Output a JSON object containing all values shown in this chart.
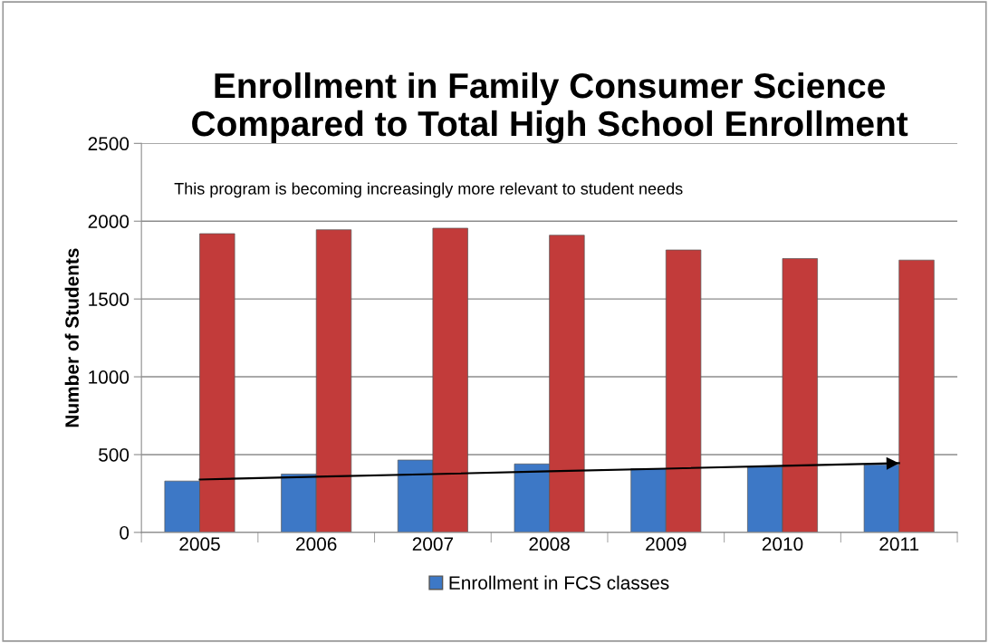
{
  "chart_data": {
    "type": "bar",
    "title": "Enrollment in Family Consumer Science\nCompared to Total High School Enrollment",
    "ylabel": "Number of Students",
    "categories": [
      "2005",
      "2006",
      "2007",
      "2008",
      "2009",
      "2010",
      "2011"
    ],
    "series": [
      {
        "name": "Enrollment in FCS classes",
        "color": "#3d78c6",
        "values": [
          330,
          375,
          465,
          440,
          410,
          420,
          435
        ]
      },
      {
        "color": "#c23b3a",
        "values": [
          1920,
          1945,
          1955,
          1910,
          1815,
          1760,
          1750
        ]
      },
      {
        "type": "line",
        "color": "#000000",
        "values": [
          340,
          358,
          375,
          393,
          410,
          428,
          445
        ]
      }
    ],
    "ylim": [
      0,
      2500
    ],
    "yticks": [
      0,
      500,
      1000,
      1500,
      2000,
      2500
    ],
    "grid": "y",
    "legend": "bottom",
    "annotations": [
      "This program is becoming increasingly more relevant to student needs"
    ]
  }
}
